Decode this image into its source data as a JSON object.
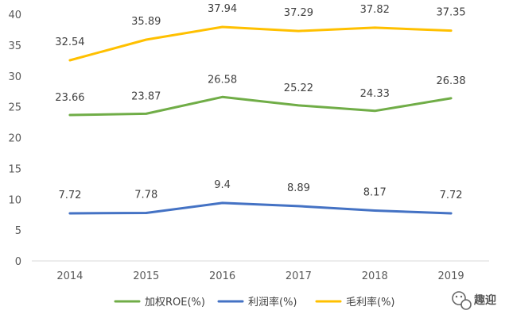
{
  "chart_data": {
    "type": "line",
    "x": [
      "2014",
      "2015",
      "2016",
      "2017",
      "2018",
      "2019"
    ],
    "ylim": [
      0,
      40
    ],
    "yticks": [
      0,
      5,
      10,
      15,
      20,
      25,
      30,
      35,
      40
    ],
    "grid": false,
    "legend_position": "bottom",
    "series": [
      {
        "name": "加权ROE(%)",
        "color": "#70AD47",
        "values": [
          23.66,
          23.87,
          26.58,
          25.22,
          24.33,
          26.38
        ],
        "labels": [
          "23.66",
          "23.87",
          "26.58",
          "25.22",
          "24.33",
          "26.38"
        ]
      },
      {
        "name": "利润率(%)",
        "color": "#4472C4",
        "values": [
          7.72,
          7.78,
          9.4,
          8.89,
          8.17,
          7.72
        ],
        "labels": [
          "7.72",
          "7.78",
          "9.4",
          "8.89",
          "8.17",
          "7.72"
        ]
      },
      {
        "name": "毛利率(%)",
        "color": "#FFC000",
        "values": [
          32.54,
          35.89,
          37.94,
          37.29,
          37.82,
          37.35
        ],
        "labels": [
          "32.54",
          "35.89",
          "37.94",
          "37.29",
          "37.82",
          "37.35"
        ]
      }
    ]
  },
  "watermark": {
    "icon": "wechat-icon",
    "text": "趣迎"
  }
}
